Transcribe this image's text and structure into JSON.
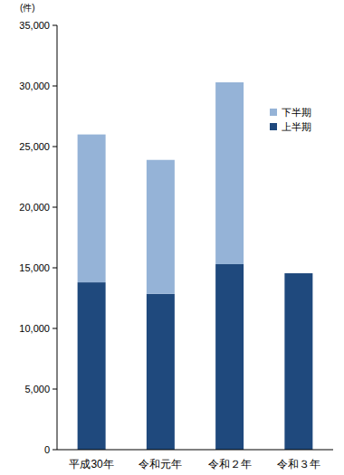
{
  "chart_data": {
    "type": "bar",
    "stacked": true,
    "y_label": "(件)",
    "categories": [
      "平成30年",
      "令和元年",
      "令和２年",
      "令和３年"
    ],
    "series": [
      {
        "name": "上半期",
        "color": "#1f497d",
        "values": [
          13800,
          12850,
          15300,
          14550
        ]
      },
      {
        "name": "下半期",
        "color": "#95b3d7",
        "values": [
          12200,
          11050,
          15000,
          null
        ]
      }
    ],
    "ylim": [
      0,
      35000
    ],
    "yticks": [
      0,
      {
        "value": 5000,
        "label": "5,000"
      },
      {
        "value": 10000,
        "label": "10,000"
      },
      {
        "value": 15000,
        "label": "15,000"
      },
      {
        "value": 20000,
        "label": "20,000"
      },
      {
        "value": 25000,
        "label": "25,000"
      },
      {
        "value": 30000,
        "label": "30,000"
      },
      {
        "value": 35000,
        "label": "35,000"
      }
    ],
    "grid": false,
    "legend": "top-right"
  }
}
